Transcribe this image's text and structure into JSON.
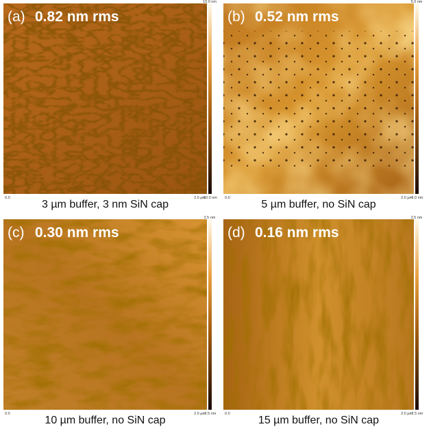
{
  "panels": [
    {
      "label": "(a)",
      "rms": "0.82 nm rms",
      "caption": "3 µm buffer, 3 nm SiN cap",
      "colorbar_max": "10.0 nm",
      "colorbar_min": "-10.0 nm",
      "x_start": "0.0",
      "x_end": "2.0 µm"
    },
    {
      "label": "(b)",
      "rms": "0.52 nm rms",
      "caption": "5 µm buffer, no SiN cap",
      "colorbar_max": "5.0 nm",
      "colorbar_min": "-5.0 nm",
      "x_start": "0.0",
      "x_end": "2.0 µm"
    },
    {
      "label": "(c)",
      "rms": "0.30 nm rms",
      "caption": "10 µm buffer, no SiN cap",
      "colorbar_max": "2.5 nm",
      "colorbar_min": "-2.5 nm",
      "x_start": "0.0",
      "x_end": "2.0 µm"
    },
    {
      "label": "(d)",
      "rms": "0.16 nm rms",
      "caption": "15 µm buffer, no SiN cap",
      "colorbar_max": "2.5 nm",
      "colorbar_min": "-2.5 nm",
      "x_start": "0.0",
      "x_end": "2.0 µm"
    }
  ]
}
